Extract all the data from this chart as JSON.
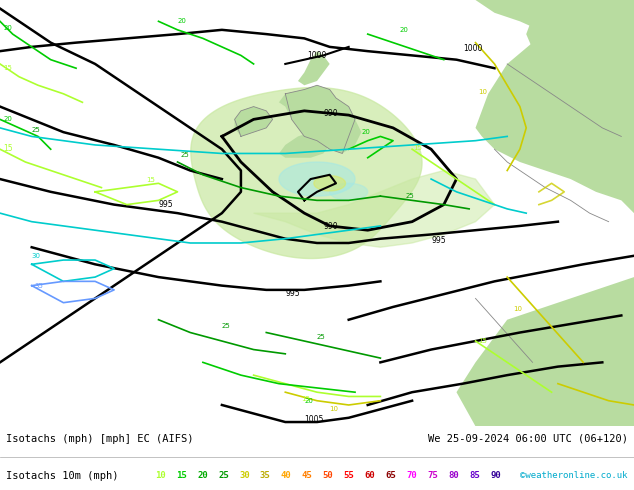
{
  "title_line1": "Isotachs (mph) [mph] EC (AIFS)",
  "title_line2": "We 25-09-2024 06:00 UTC (06+120)",
  "subtitle": "Isotachs 10m (mph)",
  "credit": "©weatheronline.co.uk",
  "legend_values": [
    10,
    15,
    20,
    25,
    30,
    35,
    40,
    45,
    50,
    55,
    60,
    65,
    70,
    75,
    80,
    85,
    90
  ],
  "legend_colors": [
    "#adff2f",
    "#00cc00",
    "#00aa00",
    "#009900",
    "#cccc00",
    "#bbaa00",
    "#ffa500",
    "#ff7f00",
    "#ff4500",
    "#ff0000",
    "#cd0000",
    "#8b0000",
    "#ff00ff",
    "#cc00cc",
    "#9900cc",
    "#6600cc",
    "#330099"
  ],
  "bg_color": "#d0d0d8",
  "land_color": "#b8dca0",
  "sea_color": "#d0d0d8",
  "footer_bg": "#ffffff",
  "fig_width": 6.34,
  "fig_height": 4.9,
  "dpi": 100
}
